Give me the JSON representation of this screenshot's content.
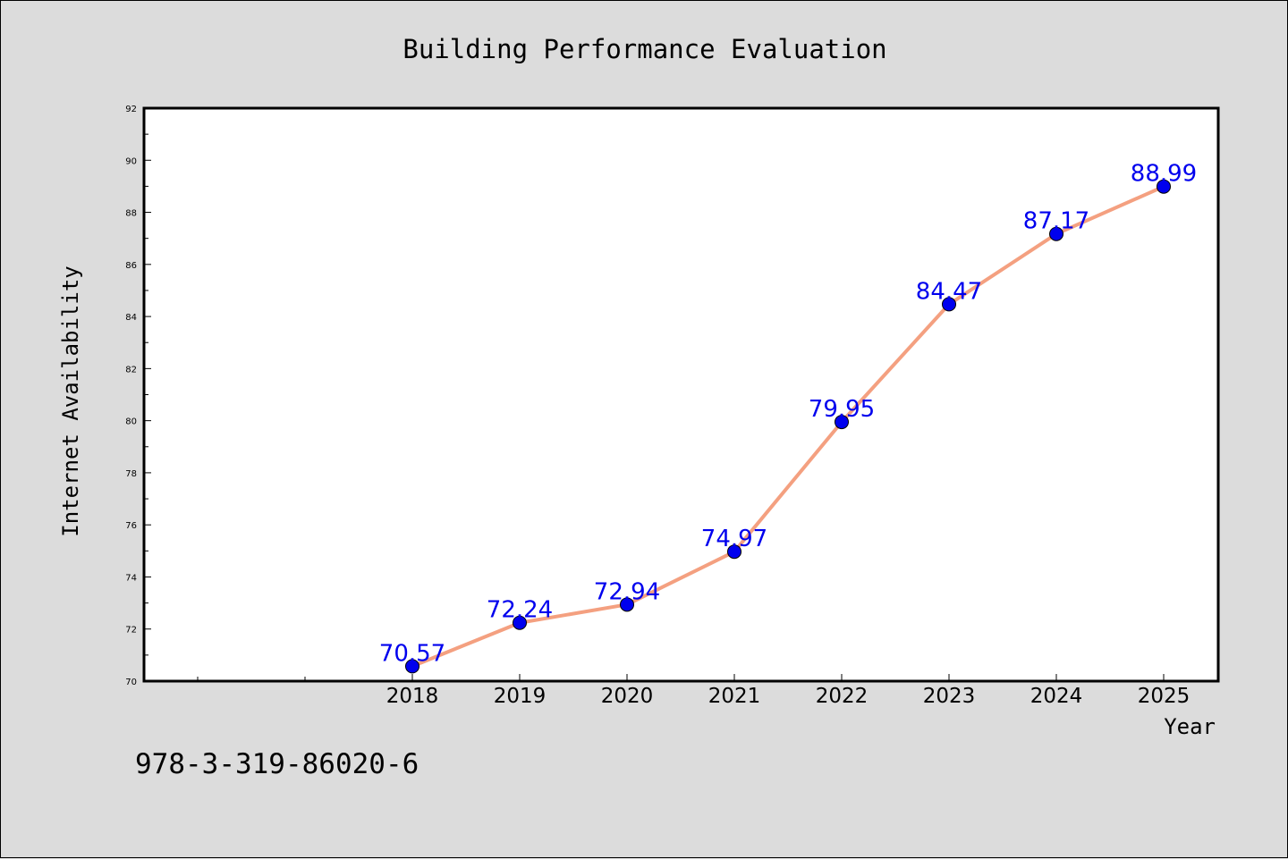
{
  "chart_data": {
    "type": "line",
    "title": "Building Performance Evaluation",
    "xlabel": "Year",
    "ylabel": "Internet Availability",
    "x": [
      "2018",
      "2019",
      "2020",
      "2021",
      "2022",
      "2023",
      "2024",
      "2025"
    ],
    "series": [
      {
        "values": [
          70.57,
          72.24,
          72.94,
          74.97,
          79.95,
          84.47,
          87.17,
          88.99
        ]
      }
    ],
    "value_labels": [
      "70.57",
      "72.24",
      "72.94",
      "74.97",
      "79.95",
      "84.47",
      "87.17",
      "88.99"
    ],
    "yticks": [
      "70",
      "72",
      "74",
      "76",
      "78",
      "80",
      "82",
      "84",
      "86",
      "88",
      "90",
      "92"
    ],
    "ylim": [
      70,
      92
    ],
    "grid": false,
    "line_color": "#f4a080",
    "marker_color": "#0000ee",
    "label_color": "#0000ee"
  },
  "footer": {
    "isbn": "978-3-319-86020-6"
  }
}
